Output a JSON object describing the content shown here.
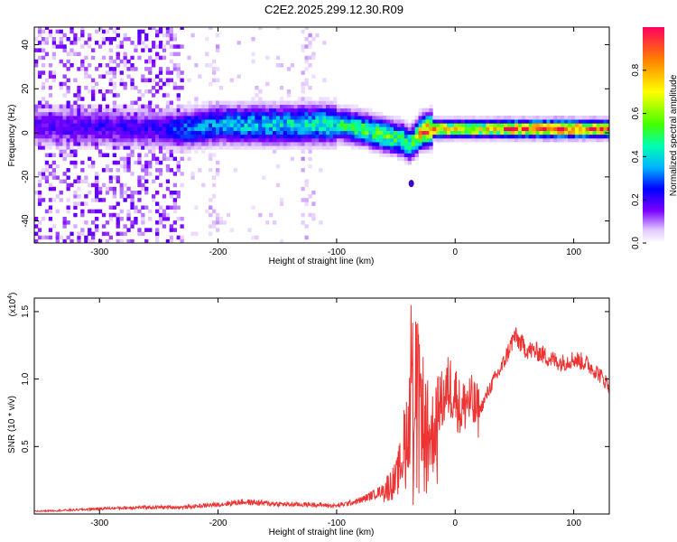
{
  "title": "C2E2.2025.299.12.30.R09",
  "chart_data": [
    {
      "type": "heatmap",
      "name": "spectrogram",
      "xlabel": "Height of straight line (km)",
      "ylabel": "Frequency (Hz)",
      "xlim": [
        -355,
        130
      ],
      "ylim": [
        -50,
        48
      ],
      "x_ticks": [
        -300,
        -200,
        -100,
        0,
        100
      ],
      "x_tick_labels": [
        "-300",
        "-200",
        "-100",
        "0",
        "100"
      ],
      "y_ticks": [
        -40,
        -20,
        0,
        20,
        40
      ],
      "y_tick_labels": [
        "-40",
        "-20",
        "0",
        "20",
        "40"
      ],
      "colorbar": {
        "label": "Normalized spectral amplitude",
        "range": [
          0,
          1
        ],
        "ticks": [
          0.0,
          0.2,
          0.4,
          0.6,
          0.8
        ],
        "tick_labels": [
          "0.0",
          "0.2",
          "0.4",
          "0.6",
          "0.8"
        ]
      },
      "ridge": {
        "x": [
          -350,
          -300,
          -250,
          -230,
          -200,
          -150,
          -120,
          -100,
          -80,
          -60,
          -45,
          -40,
          -35,
          -30,
          -20,
          0,
          20,
          50,
          80,
          100,
          130
        ],
        "y": [
          2,
          2,
          1,
          1,
          3,
          3,
          3,
          3,
          1,
          -2,
          -4,
          -6,
          -4,
          0,
          1,
          1,
          1,
          1,
          1,
          1,
          1
        ],
        "peak_amplitude": [
          0.18,
          0.2,
          0.2,
          0.3,
          0.35,
          0.4,
          0.42,
          0.45,
          0.5,
          0.55,
          0.5,
          0.5,
          0.6,
          0.8,
          0.85,
          0.7,
          0.7,
          0.9,
          0.95,
          0.9,
          0.85
        ]
      },
      "outlier": {
        "x": -37,
        "y": -23
      }
    },
    {
      "type": "line",
      "name": "snr",
      "xlabel": "Height of straight line (km)",
      "ylabel": "SNR (10 * v/v)",
      "y_scale_label": "(x10",
      "y_scale_exponent": "4",
      "xlim": [
        -355,
        130
      ],
      "ylim": [
        0,
        1.6
      ],
      "x_ticks": [
        -300,
        -200,
        -100,
        0,
        100
      ],
      "x_tick_labels": [
        "-300",
        "-200",
        "-100",
        "0",
        "100"
      ],
      "y_ticks": [
        0.5,
        1.0,
        1.5
      ],
      "y_tick_labels": [
        "0.5",
        "1.0",
        "1.5"
      ],
      "color": "#ee3333",
      "series": [
        {
          "name": "SNR",
          "x": [
            -355,
            -320,
            -300,
            -260,
            -230,
            -200,
            -180,
            -160,
            -140,
            -120,
            -100,
            -80,
            -60,
            -50,
            -45,
            -40,
            -35,
            -30,
            -25,
            -20,
            -15,
            -10,
            -5,
            0,
            5,
            10,
            20,
            30,
            40,
            50,
            60,
            70,
            80,
            90,
            100,
            110,
            120,
            130
          ],
          "y": [
            0.02,
            0.03,
            0.04,
            0.05,
            0.05,
            0.07,
            0.09,
            0.08,
            0.07,
            0.07,
            0.06,
            0.1,
            0.18,
            0.25,
            0.4,
            0.7,
            1.0,
            0.9,
            0.7,
            0.55,
            0.8,
            0.85,
            0.95,
            0.9,
            0.75,
            0.85,
            0.75,
            0.95,
            1.1,
            1.32,
            1.22,
            1.2,
            1.15,
            1.12,
            1.15,
            1.12,
            1.05,
            0.95
          ]
        }
      ]
    }
  ]
}
